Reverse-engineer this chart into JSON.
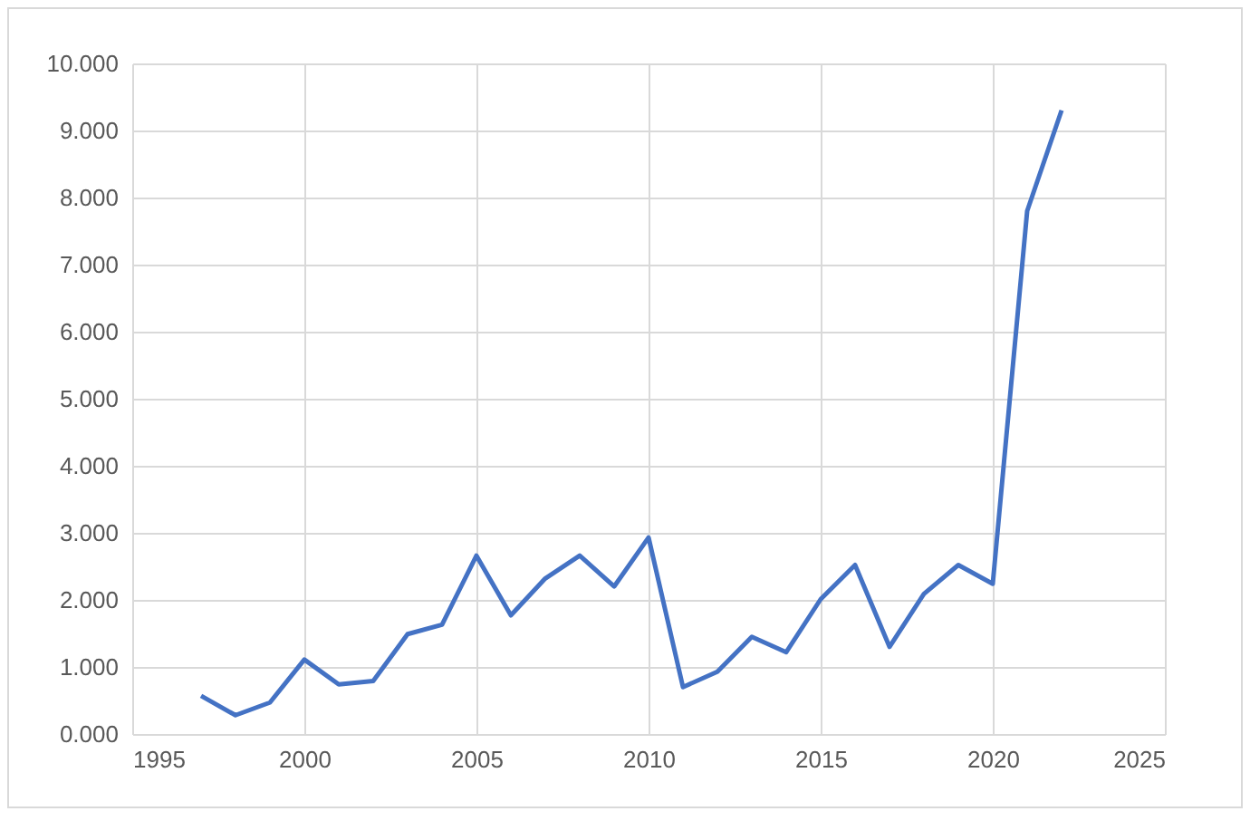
{
  "chart_data": {
    "type": "line",
    "x": [
      1997,
      1998,
      1999,
      2000,
      2001,
      2002,
      2003,
      2004,
      2005,
      2006,
      2007,
      2008,
      2009,
      2010,
      2011,
      2012,
      2013,
      2014,
      2015,
      2016,
      2017,
      2018,
      2019,
      2020,
      2021,
      2022
    ],
    "series": [
      {
        "color": "#4472c4",
        "values": [
          0.57,
          0.28,
          0.47,
          1.11,
          0.74,
          0.79,
          1.49,
          1.63,
          2.66,
          1.77,
          2.32,
          2.66,
          2.2,
          2.93,
          0.7,
          0.93,
          1.45,
          1.22,
          2.01,
          2.52,
          1.3,
          2.09,
          2.52,
          2.24,
          7.8,
          9.3
        ]
      }
    ],
    "xlim": [
      1995,
      2025
    ],
    "xticks": [
      1995,
      2000,
      2005,
      2010,
      2015,
      2020,
      2025
    ],
    "ylim": [
      0,
      10
    ],
    "yticks": [
      {
        "value": 0,
        "label": "0.000"
      },
      {
        "value": 1,
        "label": "1.000"
      },
      {
        "value": 2,
        "label": "2.000"
      },
      {
        "value": 3,
        "label": "3.000"
      },
      {
        "value": 4,
        "label": "4.000"
      },
      {
        "value": 5,
        "label": "5.000"
      },
      {
        "value": 6,
        "label": "6.000"
      },
      {
        "value": 7,
        "label": "7.000"
      },
      {
        "value": 8,
        "label": "8.000"
      },
      {
        "value": 9,
        "label": "9.000"
      },
      {
        "value": 10,
        "label": "10.000"
      }
    ],
    "grid": true,
    "marker": "none",
    "line_style": "solid"
  }
}
